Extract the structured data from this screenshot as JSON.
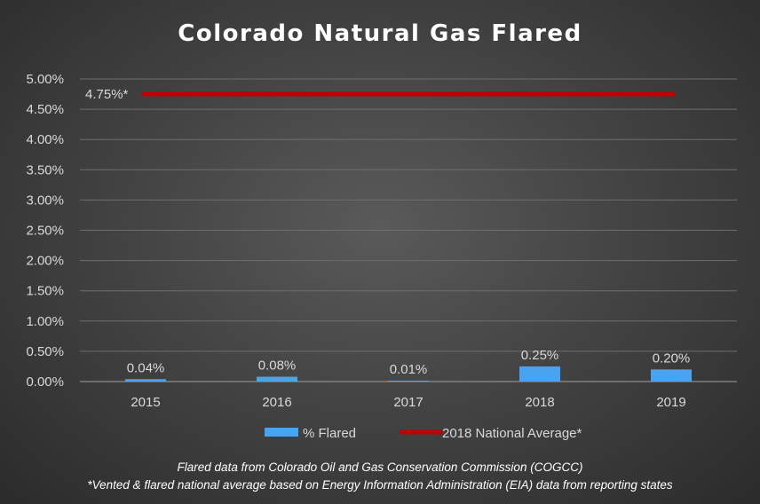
{
  "chart_data": {
    "type": "bar",
    "title": "Colorado Natural Gas Flared",
    "categories": [
      "2015",
      "2016",
      "2017",
      "2018",
      "2019"
    ],
    "series": [
      {
        "name": "% Flared",
        "values": [
          0.04,
          0.08,
          0.01,
          0.25,
          0.2
        ],
        "labels": [
          "0.04%",
          "0.08%",
          "0.01%",
          "0.25%",
          "0.20%"
        ],
        "color": "#4aa3f0"
      }
    ],
    "reference_line": {
      "name": "2018 National Average*",
      "value": 4.75,
      "label": "4.75%*",
      "color": "#c00000"
    },
    "ylim": [
      0,
      5
    ],
    "yticks": [
      "0.00%",
      "0.50%",
      "1.00%",
      "1.50%",
      "2.00%",
      "2.50%",
      "3.00%",
      "3.50%",
      "4.00%",
      "4.50%",
      "5.00%"
    ],
    "xlabel": "",
    "ylabel": "",
    "grid": true,
    "legend": "bottom-center",
    "footnotes": [
      "Flared data from Colorado Oil and Gas Conservation Commission (COGCC)",
      "*Vented & flared national average based on Energy Information Administration (EIA) data from reporting states"
    ]
  }
}
